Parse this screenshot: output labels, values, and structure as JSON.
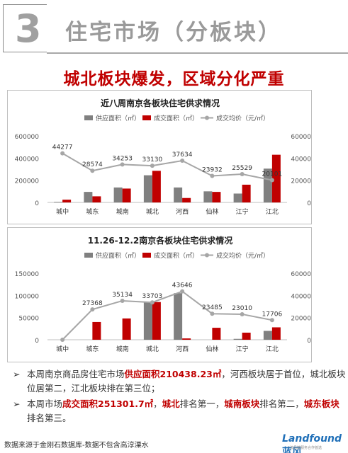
{
  "header": {
    "number": "3",
    "title": "住宅市场（分板块）"
  },
  "headline": "城北板块爆发，区域分化严重",
  "colors": {
    "supply": "#808080",
    "deal": "#c00000",
    "price": "#a6a6a6"
  },
  "chart_data": [
    {
      "type": "bar",
      "title": "近八周南京各板块住宅供求情况",
      "categories": [
        "城中",
        "城东",
        "城南",
        "城北",
        "河西",
        "仙林",
        "江宁",
        "江北"
      ],
      "series": [
        {
          "name": "供应面积（㎡）",
          "type": "bar",
          "axis": "left",
          "values": [
            2000,
            95000,
            135000,
            245000,
            135000,
            100000,
            80000,
            305000
          ]
        },
        {
          "name": "成交面积（㎡）",
          "type": "bar",
          "axis": "left",
          "values": [
            25000,
            55000,
            125000,
            285000,
            40000,
            95000,
            160000,
            430000
          ]
        },
        {
          "name": "成交均价（元/㎡）",
          "type": "line",
          "axis": "right",
          "values": [
            44277,
            28574,
            34253,
            33130,
            37634,
            23932,
            25529,
            20101
          ],
          "labels": [
            "44277",
            "28574",
            "34253",
            "33130",
            "37634",
            "23932",
            "25529",
            "20101"
          ]
        }
      ],
      "y_left": {
        "ylim": [
          0,
          600000
        ],
        "ticks": [
          "0",
          "200000",
          "400000",
          "600000"
        ]
      },
      "y_right": {
        "ylim": [
          0,
          60000
        ],
        "ticks": [
          "0",
          "20000",
          "40000",
          "60000"
        ]
      },
      "legend": "top"
    },
    {
      "type": "bar",
      "title": "11.26-12.2南京各板块住宅供求情况",
      "categories": [
        "城中",
        "城东",
        "城南",
        "城北",
        "河西",
        "仙林",
        "江宁",
        "江北"
      ],
      "series": [
        {
          "name": "供应面积（㎡）",
          "type": "bar",
          "axis": "left",
          "values": [
            0,
            0,
            0,
            85000,
            105000,
            0,
            2000,
            20000
          ]
        },
        {
          "name": "成交面积（㎡）",
          "type": "bar",
          "axis": "left",
          "values": [
            0,
            40000,
            48000,
            85000,
            3000,
            27000,
            16000,
            28000
          ]
        },
        {
          "name": "成交均价（元/㎡）",
          "type": "line",
          "axis": "right",
          "values": [
            0,
            27368,
            35134,
            33703,
            43646,
            23485,
            23010,
            17706
          ],
          "labels": [
            "",
            "27368",
            "35134",
            "33703",
            "43646",
            "23485",
            "23010",
            "17706"
          ]
        }
      ],
      "y_left": {
        "ylim": [
          0,
          150000
        ],
        "ticks": [
          "0",
          "50000",
          "100000",
          "150000"
        ]
      },
      "y_right": {
        "ylim": [
          0,
          60000
        ],
        "ticks": [
          "0",
          "20000",
          "40000",
          "60000"
        ]
      },
      "legend": "top"
    }
  ],
  "notes": [
    {
      "parts": [
        {
          "text": "本周南京商品房住宅市场",
          "red": false
        },
        {
          "text": "供应面积210438.23㎡",
          "red": true
        },
        {
          "text": "，河西板块居于首位，城北板块位居第二，江北板块排在第三位；",
          "red": false
        }
      ]
    },
    {
      "parts": [
        {
          "text": "本周市场",
          "red": false
        },
        {
          "text": "成交面积251301.7㎡",
          "red": true
        },
        {
          "text": "，",
          "red": false
        },
        {
          "text": "城北",
          "red": true
        },
        {
          "text": "排名第一，",
          "red": false
        },
        {
          "text": "城南板块",
          "red": true
        },
        {
          "text": "排名第二，",
          "red": false
        },
        {
          "text": "城东板块",
          "red": true
        },
        {
          "text": "排名第三。",
          "red": false
        }
      ]
    }
  ],
  "bullet_symbol": "➢",
  "source": "数据来源于金刚石数据库-数据不包含高淳溧水",
  "logo": {
    "latin": "Landfound",
    "cn": "蓝风",
    "sub": "一流品牌服务合作首选"
  }
}
